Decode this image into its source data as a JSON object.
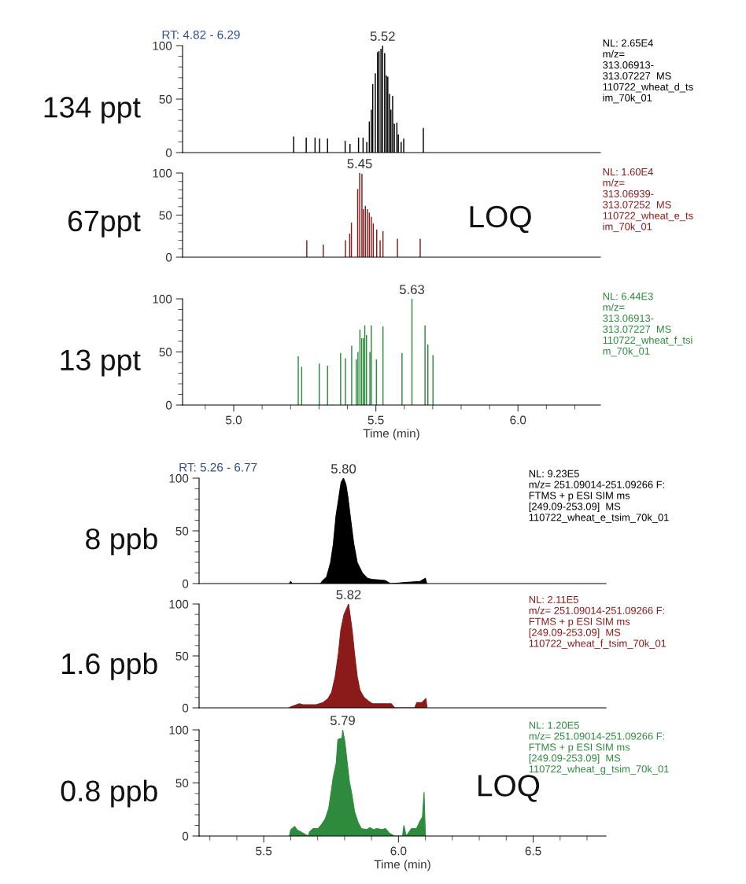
{
  "chart_data": [
    {
      "type": "bar",
      "title": "RT: 4.82 - 6.29",
      "ylabel": "134 ppt",
      "legend": "right",
      "xlim": [
        4.82,
        6.29
      ],
      "ylim": [
        0,
        100
      ],
      "yticks": [
        0,
        50,
        100
      ],
      "tick_labels": "y",
      "series": [
        {
          "name": "NL: 2.65E4\nm/z=\n313.06913-\n313.07227  MS\n110722_wheat_d_ts\nim_70k_01",
          "color": "#000000",
          "x": [
            5.211,
            5.255,
            5.286,
            5.302,
            5.33,
            5.392,
            5.409,
            5.439,
            5.455,
            5.468,
            5.477,
            5.484,
            5.489,
            5.498,
            5.506,
            5.511,
            5.518,
            5.524,
            5.531,
            5.537,
            5.542,
            5.548,
            5.553,
            5.559,
            5.565,
            5.574,
            5.579,
            5.589,
            5.598,
            5.667
          ],
          "values": [
            15,
            14,
            14,
            13,
            13,
            11,
            8,
            14,
            14,
            10,
            29,
            40,
            64,
            74,
            94,
            95,
            97,
            100,
            93,
            72,
            71,
            55,
            40,
            53,
            27,
            28,
            17,
            10,
            13,
            23
          ]
        }
      ],
      "annotations": [
        {
          "text": "5.52",
          "x": 5.524,
          "y": 100
        }
      ]
    },
    {
      "type": "bar",
      "ylabel": "67ppt",
      "legend": "right",
      "xlim": [
        4.82,
        6.29
      ],
      "ylim": [
        0,
        100
      ],
      "yticks": [
        0,
        50,
        100
      ],
      "tick_labels": "y",
      "series": [
        {
          "name": "NL: 1.60E4\nm/z=\n313.06939-\n313.07252  MS\n110722_wheat_e_ts\nim_70k_01",
          "color": "#8b1a1a",
          "x": [
            5.257,
            5.315,
            5.393,
            5.408,
            5.414,
            5.436,
            5.443,
            5.451,
            5.456,
            5.463,
            5.47,
            5.477,
            5.484,
            5.491,
            5.503,
            5.515,
            5.525,
            5.576,
            5.656
          ],
          "values": [
            20,
            15,
            20,
            28,
            41,
            81,
            100,
            99,
            57,
            61,
            57,
            53,
            48,
            40,
            33,
            20,
            31,
            22,
            22
          ]
        }
      ],
      "annotations": [
        {
          "text": "5.45",
          "x": 5.443,
          "y": 100
        },
        "LOQ"
      ]
    },
    {
      "type": "bar",
      "ylabel": "13 ppt",
      "xlabel": "Time (min)",
      "legend": "right",
      "xlim": [
        4.82,
        6.29
      ],
      "ylim": [
        0,
        100
      ],
      "yticks": [
        0,
        50,
        100
      ],
      "xticks": [
        {
          "value": 5.0,
          "label": "5.0"
        },
        {
          "value": 5.5,
          "label": "5.5"
        },
        {
          "value": 6.0,
          "label": "6.0"
        }
      ],
      "series": [
        {
          "name": "NL: 6.44E3\nm/z=\n313.06913-\n313.07227  MS\n110722_wheat_f_tsi\nm_70k_01",
          "color": "#2e8b3e",
          "x": [
            5.227,
            5.239,
            5.301,
            5.33,
            5.376,
            5.393,
            5.415,
            5.431,
            5.437,
            5.444,
            5.45,
            5.456,
            5.461,
            5.467,
            5.479,
            5.484,
            5.502,
            5.525,
            5.592,
            5.627,
            5.673,
            5.683,
            5.701
          ],
          "values": [
            46,
            36,
            39,
            37,
            49,
            44,
            56,
            43,
            50,
            71,
            63,
            63,
            75,
            66,
            50,
            75,
            43,
            74,
            49,
            100,
            75,
            57,
            47
          ]
        }
      ],
      "annotations": [
        {
          "text": "5.63",
          "x": 5.627,
          "y": 100
        }
      ]
    },
    {
      "type": "area",
      "title": "RT: 5.26 - 6.77",
      "ylabel": "8 ppb",
      "legend": "top right",
      "xlim": [
        5.26,
        6.77
      ],
      "ylim": [
        0,
        100
      ],
      "yticks": [
        0,
        50,
        100
      ],
      "tick_labels": "y",
      "series": [
        {
          "name": "NL: 9.23E5\nm/z= 251.09014-251.09266 F:\nFTMS + p ESI SIM ms\n[249.09-253.09]  MS\n110722_wheat_e_tsim_70k_01",
          "color": "#000000",
          "x": [
            5.595,
            5.6,
            5.605,
            5.71,
            5.72,
            5.733,
            5.748,
            5.758,
            5.768,
            5.78,
            5.787,
            5.796,
            5.805,
            5.813,
            5.821,
            5.834,
            5.847,
            5.866,
            5.885,
            5.9,
            5.95,
            5.97,
            6.08,
            6.1,
            6.105
          ],
          "values": [
            0,
            2,
            0,
            0,
            3,
            6,
            20,
            37,
            64,
            84,
            96,
            100,
            94,
            81,
            64,
            38,
            20,
            10,
            5,
            4,
            3,
            0,
            2,
            5,
            0
          ]
        }
      ],
      "annotations": [
        {
          "text": "5.80",
          "x": 5.796,
          "y": 100
        }
      ]
    },
    {
      "type": "area",
      "ylabel": "1.6 ppb",
      "legend": "top right",
      "xlim": [
        5.26,
        6.77
      ],
      "ylim": [
        0,
        100
      ],
      "yticks": [
        0,
        50,
        100
      ],
      "tick_labels": "y",
      "series": [
        {
          "name": "NL: 2.11E5\nm/z= 251.09014-251.09266 F:\nFTMS + p ESI SIM ms\n[249.09-253.09]  MS\n110722_wheat_f_tsim_70k_01",
          "color": "#8b1a1a",
          "x": [
            5.595,
            5.6,
            5.632,
            5.645,
            5.695,
            5.72,
            5.739,
            5.752,
            5.765,
            5.777,
            5.786,
            5.798,
            5.815,
            5.82,
            5.828,
            5.837,
            5.847,
            5.857,
            5.872,
            5.891,
            5.903,
            5.922,
            5.948,
            5.973,
            5.986,
            6.06,
            6.068,
            6.087,
            6.102,
            6.106
          ],
          "values": [
            0,
            1,
            4,
            3,
            3,
            5,
            9,
            15,
            30,
            52,
            75,
            90,
            100,
            90,
            75,
            52,
            30,
            17,
            10,
            6,
            4,
            4,
            4,
            4,
            0,
            0,
            5,
            5,
            9,
            0
          ]
        }
      ],
      "annotations": [
        {
          "text": "5.82",
          "x": 5.815,
          "y": 100
        }
      ]
    },
    {
      "type": "area",
      "ylabel": "0.8 ppb",
      "xlabel": "Time (min)",
      "legend": "top right",
      "xlim": [
        5.26,
        6.77
      ],
      "ylim": [
        0,
        100
      ],
      "yticks": [
        0,
        50,
        100
      ],
      "xticks": [
        5.5,
        {
          "value": 6.0,
          "label": "6.0"
        },
        6.5
      ],
      "series": [
        {
          "name": "NL: 1.20E5\nm/z= 251.09014-251.09266 F:\nFTMS + p ESI SIM ms\n[249.09-253.09]  MS\n110722_wheat_g_tsim_70k_01",
          "color": "#2e8b3e",
          "x": [
            5.595,
            5.6,
            5.615,
            5.623,
            5.665,
            5.67,
            5.683,
            5.69,
            5.702,
            5.715,
            5.728,
            5.741,
            5.751,
            5.757,
            5.769,
            5.775,
            5.786,
            5.79,
            5.793,
            5.801,
            5.809,
            5.818,
            5.828,
            5.837,
            5.85,
            5.862,
            5.882,
            5.894,
            5.907,
            5.92,
            5.939,
            5.952,
            5.965,
            5.984,
            6.015,
            6.02,
            6.029,
            6.048,
            6.067,
            6.08,
            6.089,
            6.095,
            6.1
          ],
          "values": [
            0,
            6,
            9,
            6,
            0,
            4,
            7,
            7,
            7,
            11,
            16,
            26,
            43,
            54,
            69,
            91,
            92,
            91,
            100,
            89,
            71,
            51,
            38,
            23,
            13,
            7,
            6,
            8,
            6,
            7,
            6,
            7,
            3,
            0,
            0,
            10,
            0,
            7,
            7,
            14,
            18,
            41,
            0
          ]
        }
      ],
      "annotations": [
        {
          "text": "5.79",
          "x": 5.793,
          "y": 100
        },
        "LOQ"
      ]
    }
  ]
}
